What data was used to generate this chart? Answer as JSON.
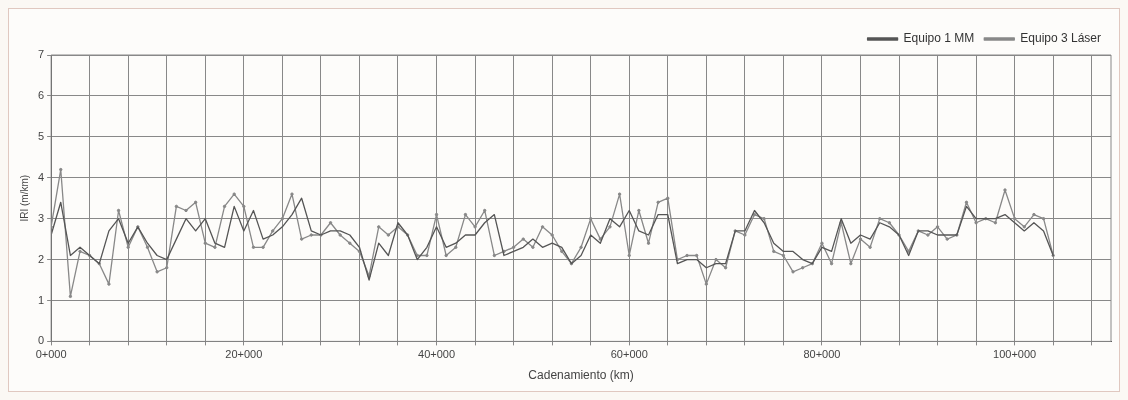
{
  "chart_data": {
    "type": "line",
    "xlabel": "Cadenamiento (km)",
    "ylabel": "IRI (m/km)",
    "categories": [
      "0+000",
      null,
      null,
      null,
      null,
      null,
      null,
      null,
      null,
      null,
      null,
      null,
      null,
      null,
      null,
      null,
      null,
      null,
      null,
      null,
      "20+000",
      null,
      null,
      null,
      null,
      null,
      null,
      null,
      null,
      null,
      null,
      null,
      null,
      null,
      null,
      null,
      null,
      null,
      null,
      null,
      "40+000",
      null,
      null,
      null,
      null,
      null,
      null,
      null,
      null,
      null,
      null,
      null,
      null,
      null,
      null,
      null,
      null,
      null,
      null,
      null,
      "60+000",
      null,
      null,
      null,
      null,
      null,
      null,
      null,
      null,
      null,
      null,
      null,
      null,
      null,
      null,
      null,
      null,
      null,
      null,
      null,
      "80+000",
      null,
      null,
      null,
      null,
      null,
      null,
      null,
      null,
      null,
      null,
      null,
      null,
      null,
      null,
      null,
      null,
      null,
      null,
      null,
      "100+000",
      null,
      null,
      null,
      null,
      null,
      null,
      null,
      null,
      null,
      null
    ],
    "series": [
      {
        "name": "Equipo 1 MM",
        "color": "#555555",
        "marker": "none",
        "values": [
          2.6,
          3.4,
          2.1,
          2.3,
          2.1,
          1.9,
          2.7,
          3.0,
          2.4,
          2.8,
          2.4,
          2.1,
          2.0,
          2.5,
          3.0,
          2.7,
          3.0,
          2.4,
          2.3,
          3.3,
          2.7,
          3.2,
          2.5,
          2.6,
          2.8,
          3.1,
          3.5,
          2.7,
          2.6,
          2.7,
          2.7,
          2.6,
          2.3,
          1.5,
          2.4,
          2.1,
          2.9,
          2.6,
          2.0,
          2.3,
          2.8,
          2.3,
          2.4,
          2.6,
          2.6,
          2.9,
          3.1,
          2.1,
          2.2,
          2.3,
          2.5,
          2.3,
          2.4,
          2.3,
          1.9,
          2.1,
          2.6,
          2.4,
          3.0,
          2.8,
          3.2,
          2.7,
          2.6,
          3.1,
          3.1,
          1.9,
          2.0,
          2.0,
          1.8,
          1.9,
          1.9,
          2.7,
          2.7,
          3.2,
          2.9,
          2.4,
          2.2,
          2.2,
          2.0,
          1.9,
          2.3,
          2.2,
          3.0,
          2.4,
          2.6,
          2.5,
          2.9,
          2.8,
          2.6,
          2.1,
          2.7,
          2.7,
          2.6,
          2.6,
          2.6,
          3.3,
          3.0,
          3.0,
          3.0,
          3.1,
          2.9,
          2.7,
          2.9,
          2.7,
          2.1,
          null,
          null,
          null,
          null,
          null,
          null
        ]
      },
      {
        "name": "Equipo 3 Láser",
        "color": "#888888",
        "marker": "circle",
        "values": [
          2.8,
          4.2,
          1.1,
          2.2,
          2.1,
          1.9,
          1.4,
          3.2,
          2.3,
          2.8,
          2.3,
          1.7,
          1.8,
          3.3,
          3.2,
          3.4,
          2.4,
          2.3,
          3.3,
          3.6,
          3.3,
          2.3,
          2.3,
          2.7,
          3.0,
          3.6,
          2.5,
          2.6,
          2.6,
          2.9,
          2.6,
          2.4,
          2.2,
          1.6,
          2.8,
          2.6,
          2.8,
          2.6,
          2.1,
          2.1,
          3.1,
          2.1,
          2.3,
          3.1,
          2.8,
          3.2,
          2.1,
          2.2,
          2.3,
          2.5,
          2.3,
          2.8,
          2.6,
          2.2,
          1.9,
          2.3,
          3.0,
          2.5,
          2.8,
          3.6,
          2.1,
          3.2,
          2.4,
          3.4,
          3.5,
          2.0,
          2.1,
          2.1,
          1.4,
          2.0,
          1.8,
          2.7,
          2.6,
          3.1,
          3.0,
          2.2,
          2.1,
          1.7,
          1.8,
          1.9,
          2.4,
          1.9,
          2.9,
          1.9,
          2.5,
          2.3,
          3.0,
          2.9,
          2.6,
          2.2,
          2.7,
          2.6,
          2.8,
          2.5,
          2.6,
          3.4,
          2.9,
          3.0,
          2.9,
          3.7,
          3.0,
          2.8,
          3.1,
          3.0,
          2.1,
          null,
          null,
          null,
          null,
          null,
          null
        ]
      }
    ],
    "ylim": [
      0,
      7
    ],
    "yticks": [
      0,
      1,
      2,
      3,
      4,
      5,
      6,
      7
    ],
    "grid": true,
    "legend": "top right"
  }
}
